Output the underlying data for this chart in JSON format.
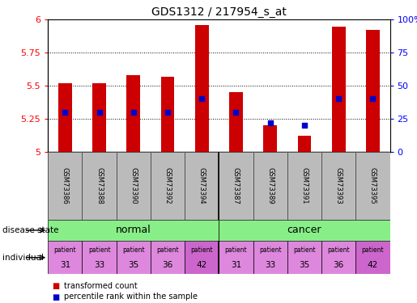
{
  "title": "GDS1312 / 217954_s_at",
  "samples": [
    "GSM73386",
    "GSM73388",
    "GSM73390",
    "GSM73392",
    "GSM73394",
    "GSM73387",
    "GSM73389",
    "GSM73391",
    "GSM73393",
    "GSM73395"
  ],
  "transformed_counts": [
    5.52,
    5.52,
    5.58,
    5.57,
    5.96,
    5.45,
    5.2,
    5.12,
    5.95,
    5.92
  ],
  "percentile_ranks": [
    30,
    30,
    30,
    30,
    40,
    30,
    22,
    20,
    40,
    40
  ],
  "ylim": [
    5.0,
    6.0
  ],
  "yticks": [
    5.0,
    5.25,
    5.5,
    5.75,
    6.0
  ],
  "ytick_labels": [
    "5",
    "5.25",
    "5.5",
    "5.75",
    "6"
  ],
  "right_yticks": [
    0,
    25,
    50,
    75,
    100
  ],
  "right_ytick_labels": [
    "0",
    "25",
    "50",
    "75",
    "100%"
  ],
  "bar_color": "#cc0000",
  "dot_color": "#0000cc",
  "patients": [
    "31",
    "33",
    "35",
    "36",
    "42",
    "31",
    "33",
    "35",
    "36",
    "42"
  ],
  "patient_bg_colors_normal": [
    "#dd88dd",
    "#dd88dd",
    "#dd88dd",
    "#dd88dd",
    "#cc66cc"
  ],
  "patient_bg_colors_cancer": [
    "#dd88dd",
    "#dd88dd",
    "#dd88dd",
    "#dd88dd",
    "#cc66cc"
  ],
  "sample_bg_color": "#bbbbbb",
  "normal_color": "#88ee88",
  "cancer_color": "#88ee88",
  "legend_label_count": "transformed count",
  "legend_label_pct": "percentile rank within the sample",
  "label_disease_state": "disease state",
  "label_individual": "individual"
}
